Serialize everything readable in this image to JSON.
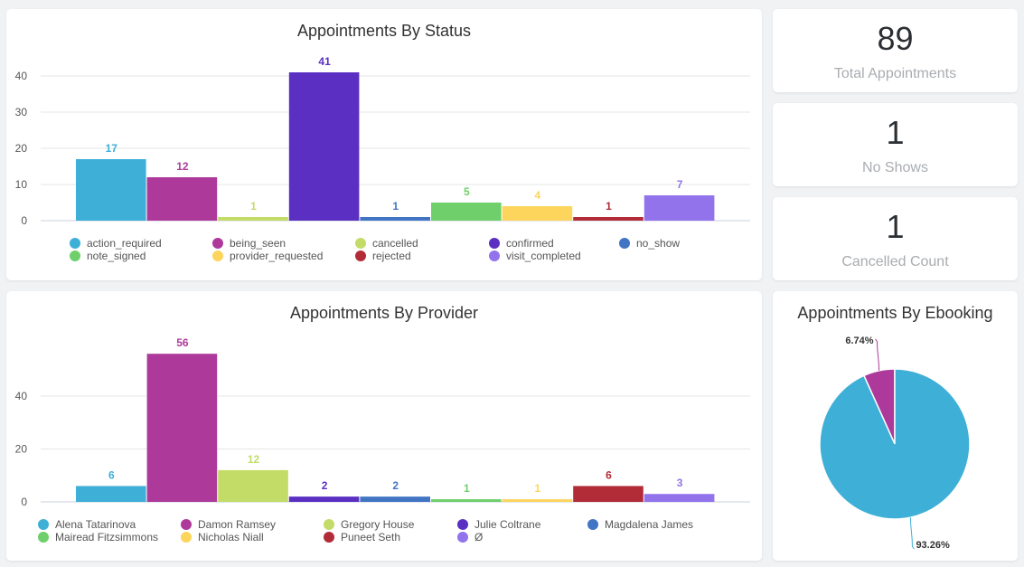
{
  "kpis": [
    {
      "value": "89",
      "label": "Total Appointments"
    },
    {
      "value": "1",
      "label": "No Shows"
    },
    {
      "value": "1",
      "label": "Cancelled Count"
    }
  ],
  "chart_data": [
    {
      "id": "status",
      "type": "bar",
      "title": "Appointments By Status",
      "xlabel": "",
      "ylabel": "",
      "ylim": [
        0,
        40
      ],
      "yticks": [
        0,
        10,
        20,
        30,
        40
      ],
      "grid": true,
      "legend_position": "bottom",
      "categories": [
        "action_required",
        "being_seen",
        "cancelled",
        "confirmed",
        "no_show",
        "note_signed",
        "provider_requested",
        "rejected",
        "visit_completed"
      ],
      "values": [
        17,
        12,
        1,
        41,
        1,
        5,
        4,
        1,
        7
      ],
      "colors": [
        "#3eafd6",
        "#ad3a9a",
        "#c2dc67",
        "#5a2fc2",
        "#4175c4",
        "#6fcf6b",
        "#fdd55d",
        "#b22c38",
        "#9273ec"
      ]
    },
    {
      "id": "provider",
      "type": "bar",
      "title": "Appointments By Provider",
      "xlabel": "",
      "ylabel": "",
      "ylim": [
        0,
        56
      ],
      "yticks": [
        0,
        20,
        40
      ],
      "grid": true,
      "legend_position": "bottom",
      "categories": [
        "Alena Tatarinova",
        "Damon Ramsey",
        "Gregory House",
        "Julie Coltrane",
        "Magdalena James",
        "Mairead Fitzsimmons",
        "Nicholas Niall",
        "Puneet Seth",
        "Ø"
      ],
      "values": [
        6,
        56,
        12,
        2,
        2,
        1,
        1,
        6,
        3
      ],
      "colors": [
        "#3eafd6",
        "#ad3a9a",
        "#c2dc67",
        "#5a2fc2",
        "#4175c4",
        "#6fcf6b",
        "#fdd55d",
        "#b22c38",
        "#9273ec"
      ]
    },
    {
      "id": "ebooking",
      "type": "pie",
      "title": "Appointments By Ebooking",
      "slices": [
        {
          "label": "6.74%",
          "value": 6.74,
          "color": "#ad3a9a"
        },
        {
          "label": "93.26%",
          "value": 93.26,
          "color": "#3eafd6"
        }
      ]
    }
  ]
}
